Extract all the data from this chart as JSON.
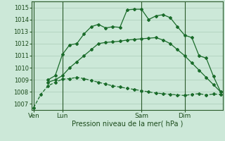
{
  "title": "Pression niveau de la mer( hPa )",
  "ylabel_vals": [
    1007,
    1008,
    1009,
    1010,
    1011,
    1012,
    1013,
    1014,
    1015
  ],
  "ylim": [
    1006.5,
    1015.5
  ],
  "xlim": [
    -0.3,
    26.3
  ],
  "bg_color": "#cce8d8",
  "grid_color": "#aaccb8",
  "line_color": "#1a6b2a",
  "xtick_labels": [
    "Ven",
    "Lun",
    "Sam",
    "Dim"
  ],
  "xtick_positions": [
    0,
    4,
    15,
    21
  ],
  "vline_positions": [
    0,
    4,
    15,
    21
  ],
  "series1_x": [
    0,
    1,
    2,
    3,
    4,
    5,
    6,
    7,
    8,
    9,
    10,
    11,
    12,
    13,
    14,
    15,
    16,
    17,
    18,
    19,
    20,
    21,
    22,
    23,
    24,
    25,
    26
  ],
  "series1_y": [
    1006.7,
    1007.8,
    1008.5,
    1008.8,
    1009.05,
    1009.1,
    1009.2,
    1009.1,
    1008.95,
    1008.8,
    1008.65,
    1008.5,
    1008.4,
    1008.3,
    1008.2,
    1008.1,
    1008.0,
    1007.9,
    1007.85,
    1007.8,
    1007.75,
    1007.7,
    1007.8,
    1007.85,
    1007.75,
    1007.82,
    1007.8
  ],
  "series2_x": [
    2,
    3,
    4,
    5,
    6,
    7,
    8,
    9,
    10,
    11,
    12,
    13,
    14,
    15,
    16,
    17,
    18,
    19,
    20,
    21,
    22,
    23,
    24,
    25,
    26
  ],
  "series2_y": [
    1008.8,
    1009.0,
    1009.35,
    1010.0,
    1010.5,
    1011.0,
    1011.5,
    1012.0,
    1012.1,
    1012.15,
    1012.2,
    1012.3,
    1012.35,
    1012.4,
    1012.45,
    1012.5,
    1012.3,
    1012.0,
    1011.5,
    1011.0,
    1010.4,
    1009.8,
    1009.2,
    1008.6,
    1008.0
  ],
  "series3_x": [
    2,
    3,
    4,
    5,
    6,
    7,
    8,
    9,
    10,
    11,
    12,
    13,
    14,
    15,
    16,
    17,
    18,
    19,
    20,
    21,
    22,
    23,
    24,
    25,
    26
  ],
  "series3_y": [
    1009.0,
    1009.35,
    1011.1,
    1011.9,
    1012.0,
    1012.8,
    1013.4,
    1013.6,
    1013.3,
    1013.4,
    1013.35,
    1014.8,
    1014.85,
    1014.85,
    1014.0,
    1014.3,
    1014.4,
    1014.15,
    1013.4,
    1012.7,
    1012.5,
    1011.0,
    1010.8,
    1009.3,
    1008.0
  ]
}
